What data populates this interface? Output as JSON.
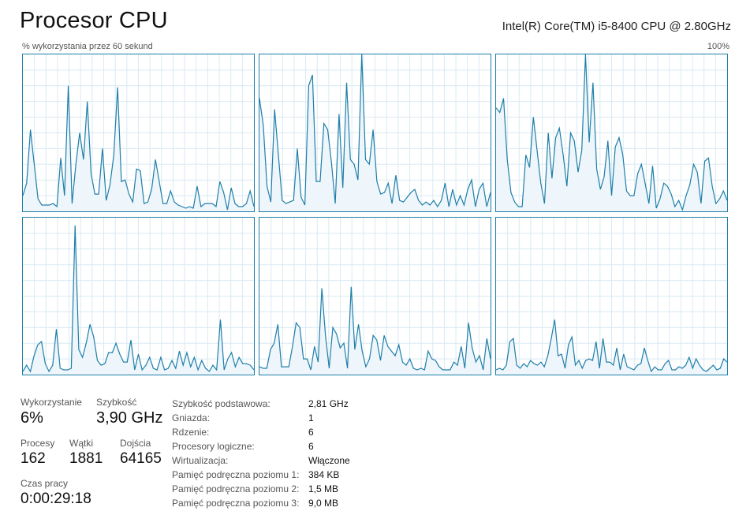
{
  "header": {
    "title": "Procesor CPU",
    "cpu_model": "Intel(R) Core(TM) i5-8400 CPU @ 2.80GHz",
    "graph_caption": "% wykorzystania przez 60 sekund",
    "graph_max": "100%"
  },
  "colors": {
    "line": "#1e7fa8",
    "fill": "#eef5fb",
    "grid": "#d9eaf3",
    "border": "#1e7fa8"
  },
  "graphs": [
    {
      "core": 0,
      "values": [
        10,
        18,
        52,
        30,
        8,
        4,
        4,
        4,
        5,
        3,
        34,
        10,
        80,
        5,
        30,
        50,
        33,
        70,
        24,
        11,
        11,
        40,
        7,
        17,
        36,
        79,
        19,
        20,
        11,
        6,
        27,
        26,
        5,
        6,
        14,
        33,
        19,
        5,
        5,
        13,
        6,
        4,
        3,
        2,
        3,
        2,
        16,
        3,
        5,
        5,
        5,
        3,
        19,
        12,
        1,
        15,
        5,
        3,
        3,
        5,
        13,
        3
      ]
    },
    {
      "core": 1,
      "values": [
        72,
        55,
        16,
        6,
        65,
        36,
        7,
        5,
        6,
        7,
        40,
        9,
        4,
        80,
        87,
        19,
        19,
        56,
        52,
        31,
        5,
        62,
        15,
        82,
        33,
        30,
        20,
        100,
        33,
        30,
        52,
        19,
        11,
        12,
        18,
        5,
        23,
        7,
        6,
        9,
        12,
        14,
        7,
        4,
        6,
        4,
        7,
        3,
        7,
        18,
        3,
        14,
        4,
        10,
        4,
        14,
        20,
        3,
        14,
        18,
        3,
        12
      ]
    },
    {
      "core": 2,
      "values": [
        66,
        63,
        72,
        33,
        12,
        6,
        3,
        3,
        36,
        28,
        60,
        39,
        18,
        5,
        50,
        21,
        47,
        53,
        36,
        16,
        50,
        45,
        25,
        39,
        100,
        44,
        82,
        27,
        14,
        22,
        45,
        10,
        41,
        47,
        36,
        13,
        10,
        10,
        24,
        30,
        18,
        5,
        29,
        2,
        8,
        18,
        16,
        11,
        3,
        7,
        1,
        10,
        17,
        30,
        25,
        5,
        32,
        34,
        16,
        5,
        8,
        13,
        7
      ]
    },
    {
      "core": 3,
      "values": [
        2,
        6,
        2,
        12,
        19,
        21,
        7,
        2,
        6,
        29,
        4,
        3,
        3,
        4,
        95,
        16,
        11,
        20,
        32,
        24,
        9,
        6,
        7,
        14,
        14,
        20,
        13,
        8,
        8,
        22,
        3,
        13,
        3,
        6,
        11,
        4,
        3,
        11,
        3,
        4,
        9,
        4,
        15,
        6,
        14,
        5,
        11,
        3,
        9,
        4,
        2,
        6,
        3,
        35,
        3,
        10,
        14,
        5,
        11,
        7,
        7,
        6,
        3
      ]
    },
    {
      "core": 4,
      "values": [
        5,
        4,
        4,
        16,
        20,
        32,
        5,
        5,
        5,
        18,
        33,
        30,
        10,
        10,
        3,
        18,
        8,
        55,
        25,
        4,
        30,
        26,
        17,
        20,
        4,
        56,
        16,
        32,
        15,
        5,
        10,
        25,
        22,
        9,
        25,
        18,
        15,
        12,
        19,
        8,
        6,
        10,
        4,
        3,
        4,
        3,
        15,
        10,
        9,
        5,
        3,
        3,
        3,
        8,
        6,
        18,
        4,
        33,
        17,
        8,
        12,
        3,
        23,
        10
      ]
    },
    {
      "core": 5,
      "values": [
        3,
        4,
        3,
        6,
        21,
        23,
        6,
        4,
        7,
        5,
        9,
        7,
        6,
        8,
        5,
        12,
        23,
        35,
        12,
        13,
        4,
        19,
        24,
        6,
        9,
        4,
        9,
        10,
        9,
        21,
        4,
        23,
        8,
        8,
        6,
        17,
        3,
        13,
        5,
        4,
        3,
        6,
        7,
        17,
        9,
        2,
        5,
        3,
        3,
        7,
        9,
        3,
        3,
        5,
        4,
        6,
        11,
        4,
        10,
        6,
        3,
        2,
        4,
        6,
        3,
        4,
        10,
        8
      ]
    }
  ],
  "stats": {
    "usage_label": "Wykorzystanie",
    "usage_value": "6%",
    "speed_label": "Szybkość",
    "speed_value": "3,90 GHz",
    "processes_label": "Procesy",
    "processes_value": "162",
    "threads_label": "Wątki",
    "threads_value": "1881",
    "handles_label": "Dojścia",
    "handles_value": "64165",
    "uptime_label": "Czas pracy",
    "uptime_value": "0:00:29:18"
  },
  "properties": [
    {
      "key": "Szybkość podstawowa:",
      "value": "2,81 GHz"
    },
    {
      "key": "Gniazda:",
      "value": "1"
    },
    {
      "key": "Rdzenie:",
      "value": "6"
    },
    {
      "key": "Procesory logiczne:",
      "value": "6"
    },
    {
      "key": "Wirtualizacja:",
      "value": "Włączone"
    },
    {
      "key": "Pamięć podręczna poziomu 1:",
      "value": "384 KB"
    },
    {
      "key": "Pamięć podręczna poziomu 2:",
      "value": "1,5 MB"
    },
    {
      "key": "Pamięć podręczna poziomu 3:",
      "value": "9,0 MB"
    }
  ]
}
